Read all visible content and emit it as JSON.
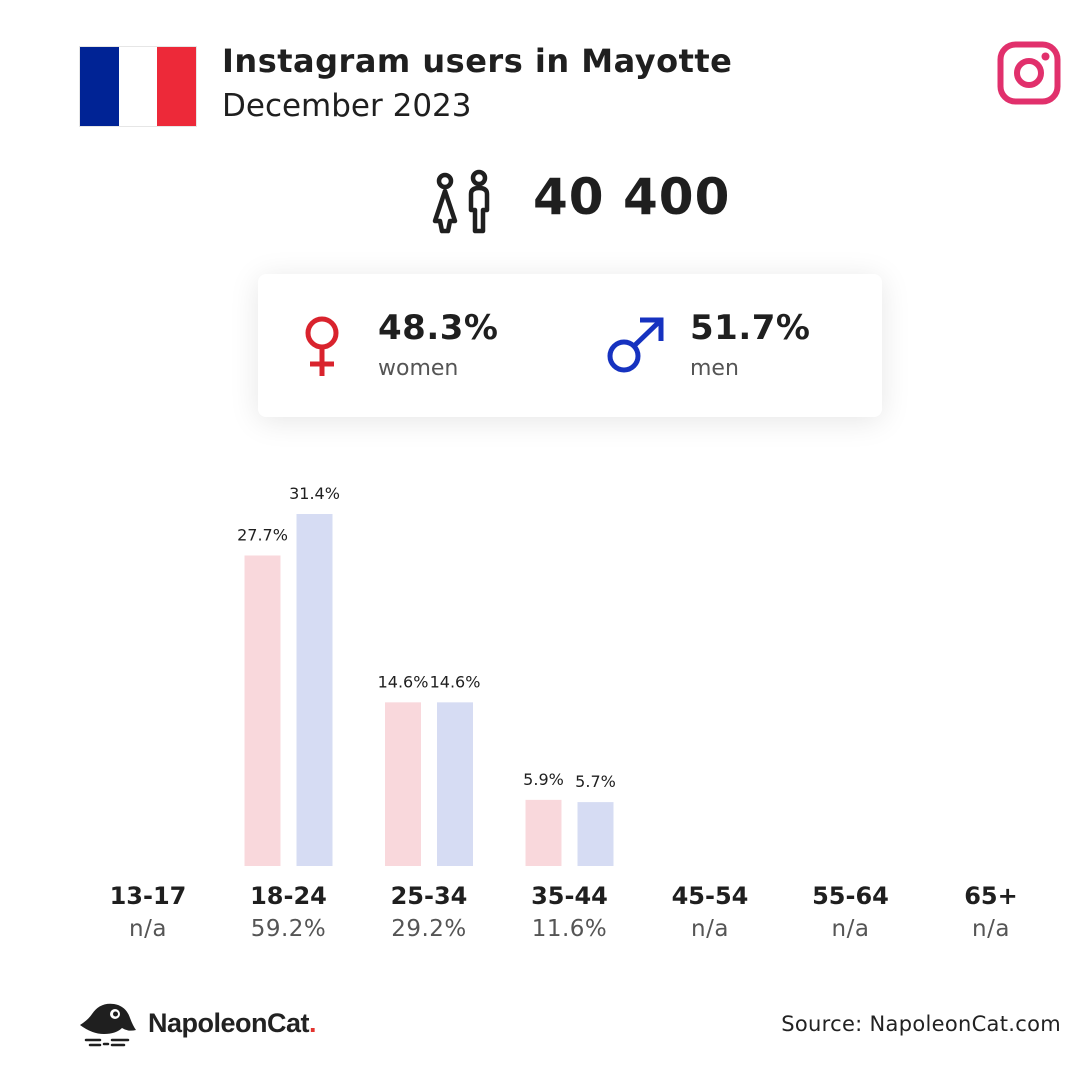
{
  "header": {
    "title": "Instagram users in Mayotte",
    "subtitle": "December 2023",
    "flag_colors": [
      "#002395",
      "#ffffff",
      "#ED2939"
    ],
    "flag_icon": "france-flag",
    "platform_icon": "instagram-icon",
    "platform_color": "#E1306C"
  },
  "total": {
    "icon": "people-icon",
    "value": "40 400"
  },
  "gender": {
    "women": {
      "pct": "48.3%",
      "label": "women",
      "icon": "female-symbol-icon",
      "color": "#D9232D"
    },
    "men": {
      "pct": "51.7%",
      "label": "men",
      "icon": "male-symbol-icon",
      "color": "#1632C0"
    }
  },
  "colors": {
    "women_bar": "#F9D8DC",
    "men_bar": "#D6DCF3"
  },
  "chart_data": {
    "type": "bar",
    "categories": [
      "13-17",
      "18-24",
      "25-34",
      "35-44",
      "45-54",
      "55-64",
      "65+"
    ],
    "series": [
      {
        "name": "women",
        "values": [
          null,
          27.7,
          14.6,
          5.9,
          null,
          null,
          null
        ]
      },
      {
        "name": "men",
        "values": [
          null,
          31.4,
          14.6,
          5.7,
          null,
          null,
          null
        ]
      }
    ],
    "value_labels": {
      "women": [
        "",
        "27.7%",
        "14.6%",
        "5.9%",
        "",
        "",
        ""
      ],
      "men": [
        "",
        "31.4%",
        "14.6%",
        "5.7%",
        "",
        "",
        ""
      ]
    },
    "group_totals": [
      "n/a",
      "59.2%",
      "29.2%",
      "11.6%",
      "n/a",
      "n/a",
      "n/a"
    ],
    "ylim": [
      0,
      31.4
    ],
    "grid": false
  },
  "footer": {
    "brand_name": "NapoleonCat",
    "brand_dot": ".",
    "brand_icon": "napoleoncat-logo-icon",
    "source": "Source: NapoleonCat.com"
  }
}
